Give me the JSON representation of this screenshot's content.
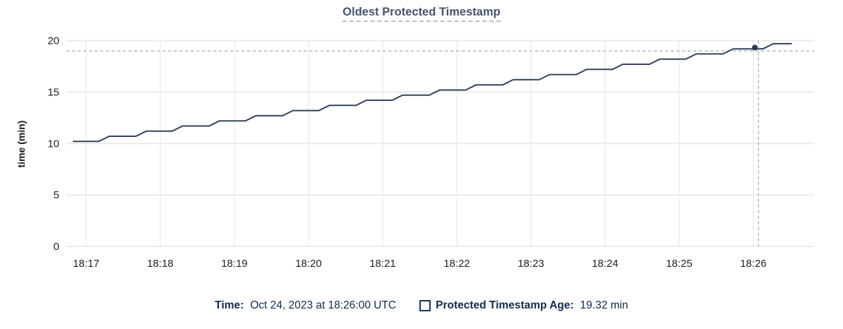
{
  "chart_data": {
    "type": "line",
    "title": "Oldest Protected Timestamp",
    "ylabel": "time (min)",
    "ylim": [
      0,
      20
    ],
    "y_ticks": [
      0,
      5,
      10,
      15,
      20
    ],
    "x_tick_labels": [
      "18:17",
      "18:18",
      "18:19",
      "18:20",
      "18:21",
      "18:22",
      "18:23",
      "18:24",
      "18:25",
      "18:26"
    ],
    "x_unit": "minutes after 18:17 UTC",
    "grid": true,
    "legend_position": "bottom",
    "series": [
      {
        "name": "Protected Timestamp Age",
        "unit": "min",
        "points": [
          [
            -0.18,
            10.2
          ],
          [
            0.17,
            10.2
          ],
          [
            0.31,
            10.7
          ],
          [
            0.67,
            10.7
          ],
          [
            0.81,
            11.2
          ],
          [
            1.16,
            11.2
          ],
          [
            1.3,
            11.7
          ],
          [
            1.66,
            11.7
          ],
          [
            1.8,
            12.2
          ],
          [
            2.15,
            12.2
          ],
          [
            2.29,
            12.7
          ],
          [
            2.65,
            12.7
          ],
          [
            2.79,
            13.2
          ],
          [
            3.14,
            13.2
          ],
          [
            3.28,
            13.7
          ],
          [
            3.64,
            13.7
          ],
          [
            3.78,
            14.2
          ],
          [
            4.13,
            14.2
          ],
          [
            4.27,
            14.7
          ],
          [
            4.63,
            14.7
          ],
          [
            4.77,
            15.2
          ],
          [
            5.12,
            15.2
          ],
          [
            5.26,
            15.7
          ],
          [
            5.62,
            15.7
          ],
          [
            5.76,
            16.2
          ],
          [
            6.11,
            16.2
          ],
          [
            6.25,
            16.7
          ],
          [
            6.61,
            16.7
          ],
          [
            6.75,
            17.2
          ],
          [
            7.1,
            17.2
          ],
          [
            7.24,
            17.7
          ],
          [
            7.6,
            17.7
          ],
          [
            7.74,
            18.2
          ],
          [
            8.09,
            18.2
          ],
          [
            8.23,
            18.7
          ],
          [
            8.59,
            18.7
          ],
          [
            8.73,
            19.2
          ],
          [
            9.13,
            19.2
          ],
          [
            9.27,
            19.7
          ],
          [
            9.52,
            19.7
          ]
        ]
      }
    ],
    "hover": {
      "time": "Oct 24, 2023 at 18:26:00 UTC",
      "point": {
        "t": 9.02,
        "value": 19.32
      },
      "cross": {
        "t": 9.07,
        "value": 19.0
      }
    }
  },
  "footer": {
    "time_label": "Time:",
    "time_value": "Oct 24, 2023 at 18:26:00 UTC",
    "series_label": "Protected Timestamp Age:",
    "series_value": "19.32 min"
  },
  "colors": {
    "line": "#36435c",
    "dot": "#2c3a52",
    "crosshair": "#a8bdc8",
    "grid_horizontal": "#ebebeb",
    "grid_vertical": "#f2f2f2",
    "title_text": "#47536e",
    "footer_text": "#15294b",
    "tick_text": "#212327",
    "title_underline": "#b6c1d4"
  }
}
